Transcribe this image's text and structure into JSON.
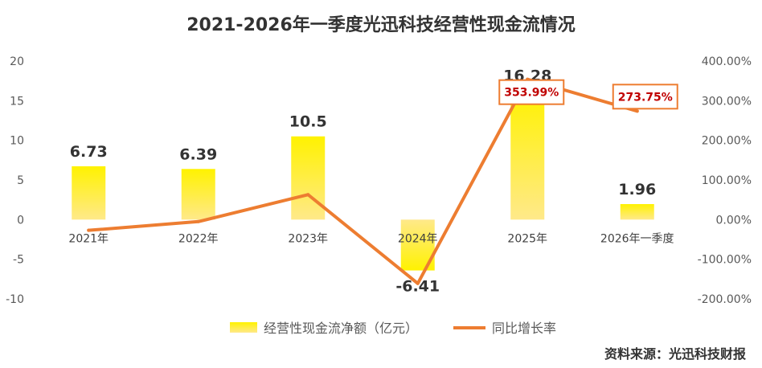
{
  "chart_data": {
    "type": "bar",
    "title": "2021-2026年一季度光迅科技经营性现金流情况",
    "categories": [
      "2021年",
      "2022年",
      "2023年",
      "2024年",
      "2025年",
      "2026年一季度"
    ],
    "series": [
      {
        "name": "经营性现金流净额（亿元）",
        "type": "bar",
        "axis": "left",
        "values": [
          6.73,
          6.39,
          10.5,
          -6.41,
          16.28,
          1.96
        ],
        "labels": [
          "6.73",
          "6.39",
          "10.5",
          "-6.41",
          "16.28",
          "1.96"
        ],
        "color": "#FFE600"
      },
      {
        "name": "同比增长率",
        "type": "line",
        "axis": "right",
        "values": [
          -27,
          -5,
          63,
          -161,
          353.99,
          273.75
        ],
        "color": "#ED7D31"
      }
    ],
    "annotations": [
      {
        "text": "353.99%",
        "category": "2025年",
        "value": 353.99
      },
      {
        "text": "273.75%",
        "category": "2026年一季度",
        "value": 273.75
      }
    ],
    "y_left": {
      "ylim": [
        -10,
        20
      ],
      "ticks": [
        "20",
        "15",
        "10",
        "5",
        "0",
        "-5",
        "-10"
      ]
    },
    "y_right": {
      "ylim": [
        -200,
        400
      ],
      "ticks": [
        "400.00%",
        "300.00%",
        "200.00%",
        "100.00%",
        "0.00%",
        "-100.00%",
        "-200.00%"
      ]
    },
    "grid": false,
    "legend_position": "bottom",
    "source": "资料来源：光迅科技财报"
  }
}
